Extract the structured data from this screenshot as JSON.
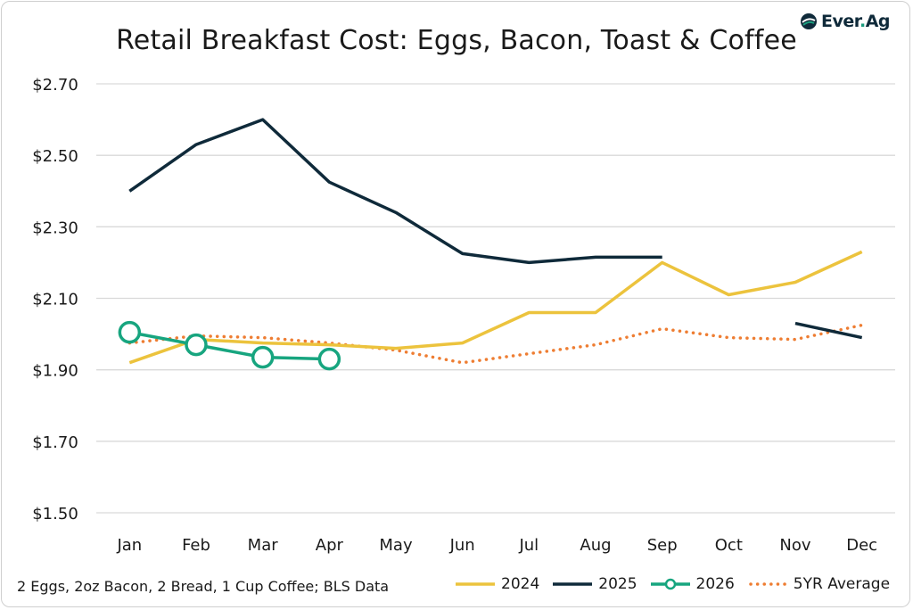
{
  "title": "Retail Breakfast Cost: Eggs, Bacon, Toast & Coffee",
  "logo": {
    "text_main": "Ever",
    "text_dot": ".",
    "text_end": "Ag",
    "icon": "everag-logo-icon"
  },
  "footnote": "2 Eggs, 2oz Bacon, 2 Bread, 1 Cup Coffee; BLS Data",
  "colors": {
    "2024": "#ecc33d",
    "2025": "#0f2a3a",
    "2026": "#17a57f",
    "5YR Average": "#ee7d32",
    "grid": "#d9d9d9"
  },
  "chart_data": {
    "type": "line",
    "title": "Retail Breakfast Cost: Eggs, Bacon, Toast & Coffee",
    "xlabel": "",
    "ylabel": "",
    "categories": [
      "Jan",
      "Feb",
      "Mar",
      "Apr",
      "May",
      "Jun",
      "Jul",
      "Aug",
      "Sep",
      "Oct",
      "Nov",
      "Dec"
    ],
    "ylim": [
      1.5,
      2.7
    ],
    "yticks": [
      1.5,
      1.7,
      1.9,
      2.1,
      2.3,
      2.5,
      2.7
    ],
    "ytick_labels": [
      "$1.50",
      "$1.70",
      "$1.90",
      "$2.10",
      "$2.30",
      "$2.50",
      "$2.70"
    ],
    "grid": true,
    "legend_position": "bottom-right",
    "series": [
      {
        "name": "2024",
        "style": "solid",
        "values": [
          1.92,
          1.985,
          1.975,
          1.97,
          1.96,
          1.975,
          2.06,
          2.06,
          2.2,
          2.11,
          2.145,
          2.23
        ]
      },
      {
        "name": "2025",
        "style": "solid",
        "values": [
          2.4,
          2.53,
          2.6,
          2.425,
          2.34,
          2.225,
          2.2,
          2.215,
          2.215,
          null,
          2.03,
          1.99
        ]
      },
      {
        "name": "2026",
        "style": "solid-circle-markers",
        "values": [
          2.005,
          1.97,
          1.935,
          1.93,
          null,
          null,
          null,
          null,
          null,
          null,
          null,
          null
        ]
      },
      {
        "name": "5YR Average",
        "style": "dotted",
        "values": [
          1.975,
          1.995,
          1.99,
          1.975,
          1.955,
          1.92,
          1.945,
          1.97,
          2.015,
          1.99,
          1.985,
          2.025
        ]
      }
    ]
  }
}
